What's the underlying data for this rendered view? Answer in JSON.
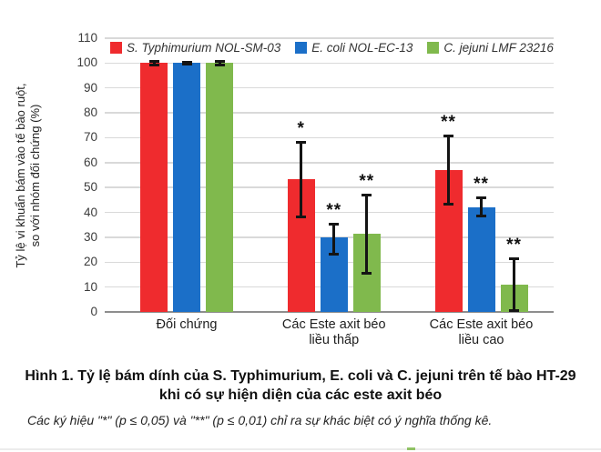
{
  "colors": {
    "red": "#EF2B2E",
    "blue": "#1B6FC8",
    "green": "#80B94D",
    "gridline": "#D9D9D9",
    "axis_line": "#8E8E8E",
    "error_bar": "#141414"
  },
  "chart_data": {
    "type": "bar",
    "title": "",
    "ylabel_line1": "Tỷ lệ vi khuẩn bám vào tế bào ruột,",
    "ylabel_line2": "so với nhóm đối chứng (%)",
    "ylim": [
      0,
      110
    ],
    "ytick_step": 10,
    "grid": true,
    "legend_position": "top-inside",
    "categories": [
      [
        "Đối chứng"
      ],
      [
        "Các Este axit béo",
        "liều thấp"
      ],
      [
        "Các Este axit béo",
        "liều cao"
      ]
    ],
    "series": [
      {
        "name": "S. Typhimurium NOL-SM-03",
        "color_key": "red",
        "values": [
          100,
          53.5,
          57
        ],
        "error_low": [
          99,
          38,
          43
        ],
        "error_high": [
          101,
          68.5,
          71
        ],
        "significance": [
          "",
          "*",
          "**"
        ]
      },
      {
        "name": "E. coli NOL-EC-13",
        "color_key": "blue",
        "values": [
          100,
          30,
          42
        ],
        "error_low": [
          99.5,
          23,
          38.5
        ],
        "error_high": [
          100.5,
          35.5,
          46
        ],
        "significance": [
          "",
          "**",
          "**"
        ]
      },
      {
        "name": "C. jejuni LMF 23216",
        "color_key": "green",
        "values": [
          100,
          31.5,
          11
        ],
        "error_low": [
          99,
          15.5,
          0.5
        ],
        "error_high": [
          101,
          47,
          21.5
        ],
        "significance": [
          "",
          "**",
          "**"
        ]
      }
    ]
  },
  "caption": {
    "line1": "Hình 1. Tỷ lệ bám dính của S. Typhimurium, E. coli và C. jejuni trên tế bào HT-29",
    "line2": "khi có sự hiện diện của các este axit béo"
  },
  "footnote": "Các ký hiệu \"*\" (p ≤ 0,05) và \"**\" (p ≤ 0,01) chỉ ra sự khác biệt có ý nghĩa thống kê."
}
